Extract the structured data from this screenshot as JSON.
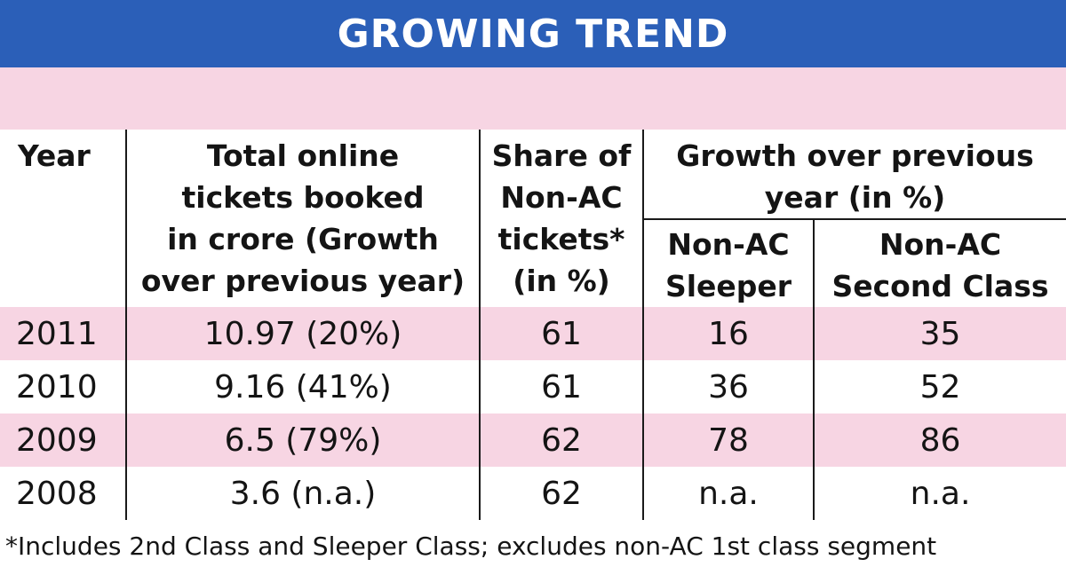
{
  "title": "GROWING TREND",
  "chart_data": {
    "type": "table",
    "columns": [
      "Year",
      "Total online tickets booked in crore (Growth over previous year)",
      "Share of Non-AC tickets* (in %)",
      "Non-AC Sleeper",
      "Non-AC Second Class"
    ],
    "group_header": "Growth over previous year (in %)",
    "rows": [
      [
        "2011",
        "10.97 (20%)",
        "61",
        "16",
        "35"
      ],
      [
        "2010",
        "9.16 (41%)",
        "61",
        "36",
        "52"
      ],
      [
        "2009",
        "6.5 (79%)",
        "62",
        "78",
        "86"
      ],
      [
        "2008",
        "3.6 (n.a.)",
        "62",
        "n.a.",
        "n.a."
      ]
    ]
  },
  "headers": {
    "year": "Year",
    "total_line1": "Total online",
    "total_line2": "tickets booked",
    "total_line3": "in crore (Growth",
    "total_line4": "over previous year)",
    "share_line1": "Share of",
    "share_line2": "Non-AC",
    "share_line3": "tickets*",
    "share_line4": "(in %)",
    "growth_line1": "Growth over previous",
    "growth_line2": "year (in %)",
    "sleeper_line1": "Non-AC",
    "sleeper_line2": "Sleeper",
    "second_line1": "Non-AC",
    "second_line2": "Second Class"
  },
  "footnote": "*Includes 2nd Class and Sleeper Class; excludes non-AC 1st class segment",
  "colors": {
    "title_bar": "#2b5fb8",
    "row_shade": "#f7d5e3",
    "title_text": "#ffffff"
  }
}
